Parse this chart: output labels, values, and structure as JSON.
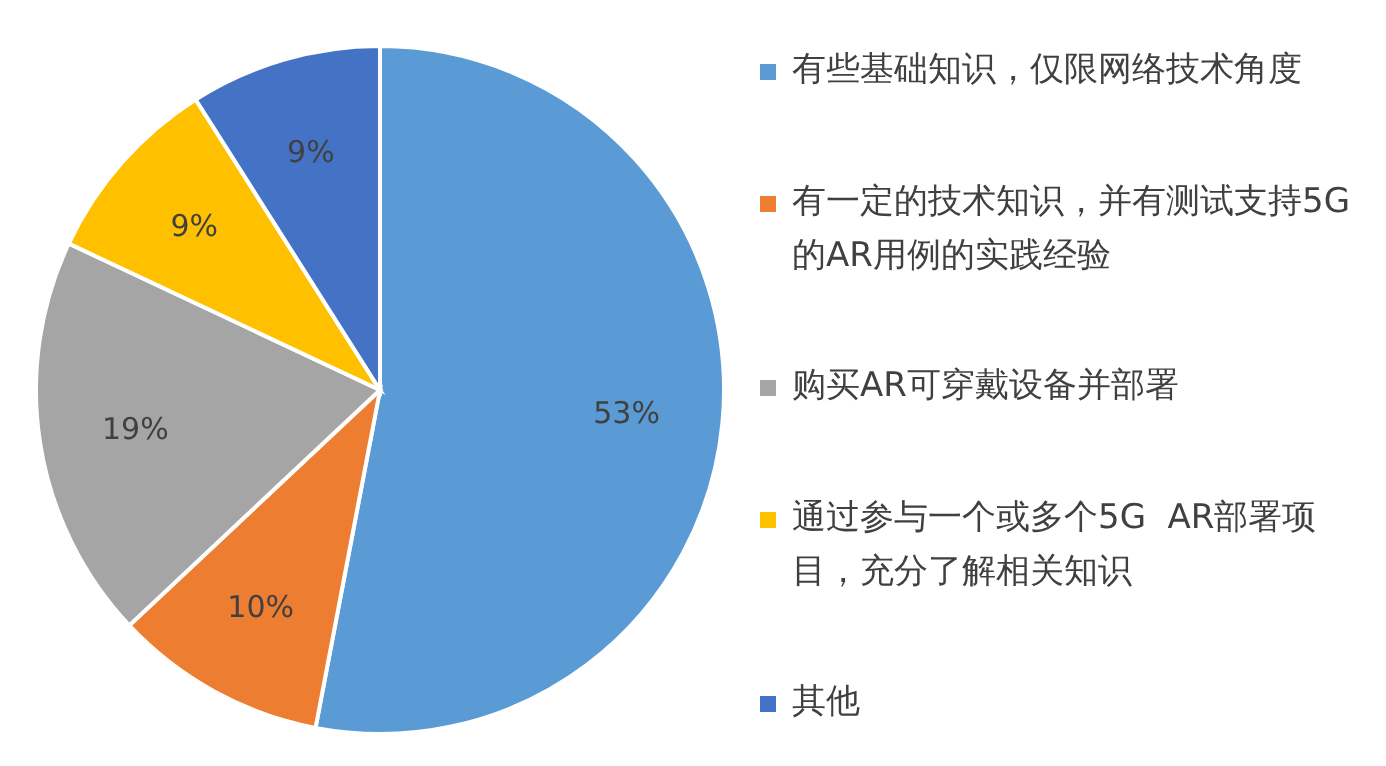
{
  "chart_data": {
    "type": "pie",
    "categories": [
      "有些基础知识，仅限网络技术角度",
      "有一定的技术知识，并有测试支持5G的AR用例的实践经验",
      "购买AR可穿戴设备并部署",
      "通过参与一个或多个5G  AR部署项目，充分了解相关知识",
      "其他"
    ],
    "values": [
      53,
      10,
      19,
      9,
      9
    ],
    "value_labels": [
      "53%",
      "10%",
      "19%",
      "9%",
      "9%"
    ],
    "colors": [
      "#5b9bd5",
      "#ed7d31",
      "#a5a5a5",
      "#ffc000",
      "#4472c4"
    ],
    "legend": "right"
  }
}
